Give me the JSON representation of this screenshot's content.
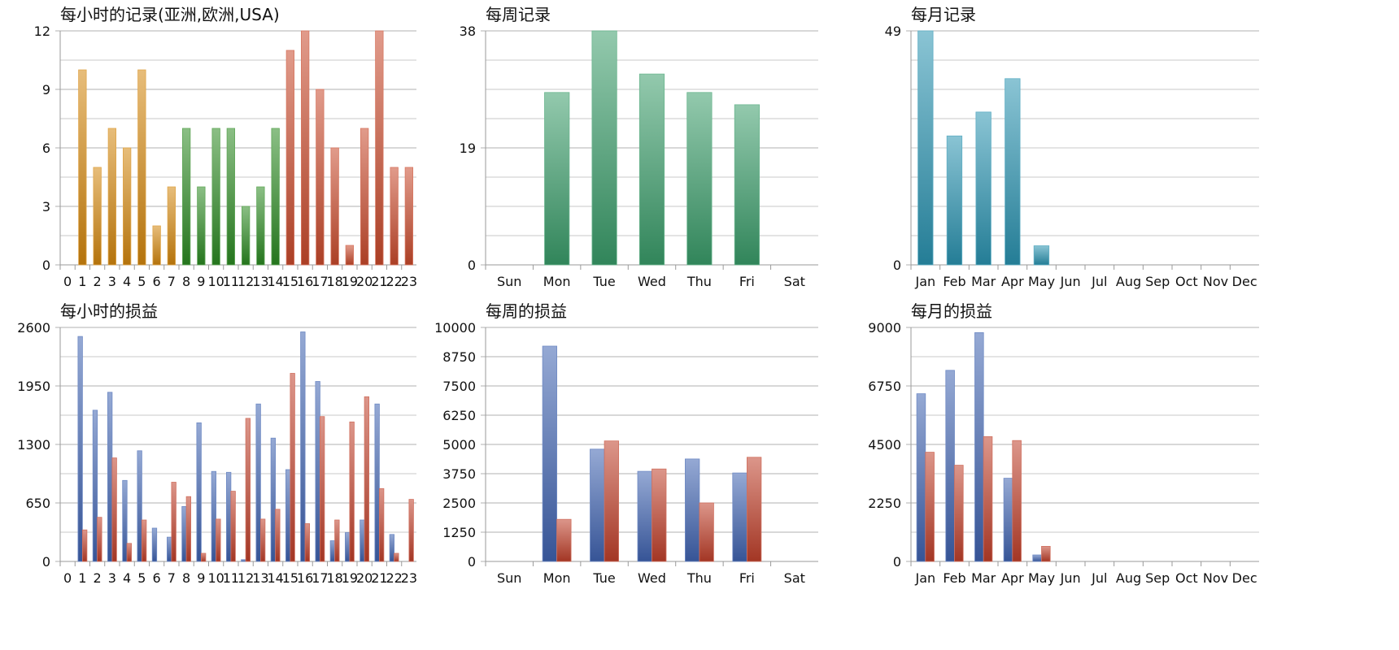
{
  "chart_data": [
    {
      "id": "hourly-records",
      "type": "bar",
      "title": "每小时的记录(亚洲,欧洲,USA)",
      "categories": [
        "0",
        "1",
        "2",
        "3",
        "4",
        "5",
        "6",
        "7",
        "8",
        "9",
        "10",
        "11",
        "12",
        "13",
        "14",
        "15",
        "16",
        "17",
        "18",
        "19",
        "20",
        "21",
        "22",
        "23"
      ],
      "series": [
        {
          "values": [
            0,
            10,
            5,
            7,
            6,
            10,
            2,
            4,
            7,
            4,
            7,
            7,
            3,
            4,
            7,
            11,
            12,
            9,
            6,
            1,
            7,
            12,
            5,
            5
          ]
        }
      ],
      "ylim": [
        0,
        12
      ],
      "yticks": [
        0,
        3,
        6,
        9,
        12
      ],
      "grid": true,
      "region_colors": {
        "asia": "#d4870e",
        "europe": "#2c8a22",
        "usa": "#c94a2c"
      }
    },
    {
      "id": "weekly-records",
      "type": "bar",
      "title": "每周记录",
      "categories": [
        "Sun",
        "Mon",
        "Tue",
        "Wed",
        "Thu",
        "Fri",
        "Sat"
      ],
      "series": [
        {
          "values": [
            0,
            28,
            38,
            31,
            28,
            26,
            0
          ]
        }
      ],
      "ylim": [
        0,
        38
      ],
      "yticks": [
        0,
        19,
        38
      ],
      "grid": true,
      "colors": [
        "#3a9d6a"
      ]
    },
    {
      "id": "monthly-records",
      "type": "bar",
      "title": "每月记录",
      "categories": [
        "Jan",
        "Feb",
        "Mar",
        "Apr",
        "May",
        "Jun",
        "Jul",
        "Aug",
        "Sep",
        "Oct",
        "Nov",
        "Dec"
      ],
      "series": [
        {
          "values": [
            49,
            27,
            32,
            39,
            4,
            0,
            0,
            0,
            0,
            0,
            0,
            0
          ]
        }
      ],
      "ylim": [
        0,
        49
      ],
      "yticks": [
        0,
        49
      ],
      "grid": true,
      "colors": [
        "#2a93b0"
      ]
    },
    {
      "id": "hourly-pnl",
      "type": "bar",
      "title": "每小时的损益",
      "categories": [
        "0",
        "1",
        "2",
        "3",
        "4",
        "5",
        "6",
        "7",
        "8",
        "9",
        "10",
        "11",
        "12",
        "13",
        "14",
        "15",
        "16",
        "17",
        "18",
        "19",
        "20",
        "21",
        "22",
        "23"
      ],
      "series": [
        {
          "values": [
            0,
            2500,
            1680,
            1880,
            900,
            1230,
            370,
            270,
            610,
            1540,
            1000,
            990,
            20,
            1750,
            1370,
            1020,
            2550,
            2000,
            230,
            320,
            460,
            1750,
            300,
            0
          ]
        },
        {
          "values": [
            0,
            350,
            490,
            1150,
            200,
            460,
            0,
            880,
            720,
            90,
            470,
            780,
            1590,
            470,
            580,
            2090,
            420,
            1610,
            460,
            1550,
            1830,
            810,
            90,
            690
          ]
        }
      ],
      "ylim": [
        0,
        2600
      ],
      "yticks": [
        0,
        650,
        1300,
        1950,
        2600
      ],
      "grid": true,
      "colors": [
        "#3f63b0",
        "#c0402a"
      ]
    },
    {
      "id": "weekly-pnl",
      "type": "bar",
      "title": "每周的损益",
      "categories": [
        "Sun",
        "Mon",
        "Tue",
        "Wed",
        "Thu",
        "Fri",
        "Sat"
      ],
      "series": [
        {
          "values": [
            0,
            9200,
            4800,
            3850,
            4380,
            3780,
            0
          ]
        },
        {
          "values": [
            0,
            1800,
            5150,
            3950,
            2500,
            4450,
            0
          ]
        }
      ],
      "ylim": [
        0,
        10000
      ],
      "yticks": [
        0,
        1250,
        2500,
        3750,
        5000,
        6250,
        7500,
        8750,
        10000
      ],
      "grid": true,
      "colors": [
        "#3f63b0",
        "#c0402a"
      ]
    },
    {
      "id": "monthly-pnl",
      "type": "bar",
      "title": "每月的损益",
      "categories": [
        "Jan",
        "Feb",
        "Mar",
        "Apr",
        "May",
        "Jun",
        "Jul",
        "Aug",
        "Sep",
        "Oct",
        "Nov",
        "Dec"
      ],
      "series": [
        {
          "values": [
            6450,
            7350,
            8800,
            3200,
            250,
            0,
            0,
            0,
            0,
            0,
            0,
            0
          ]
        },
        {
          "values": [
            4200,
            3700,
            4800,
            4650,
            580,
            0,
            0,
            0,
            0,
            0,
            0,
            0
          ]
        }
      ],
      "ylim": [
        0,
        9000
      ],
      "yticks": [
        0,
        2250,
        4500,
        6750,
        9000
      ],
      "grid": true,
      "colors": [
        "#3f63b0",
        "#c0402a"
      ]
    }
  ]
}
